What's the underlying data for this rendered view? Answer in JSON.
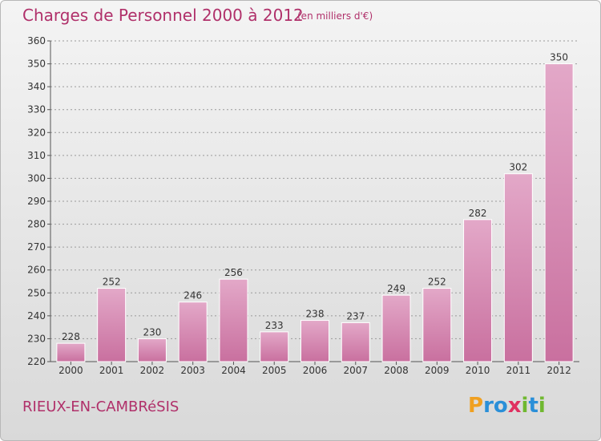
{
  "header": {
    "title": "Charges de Personnel 2000 à 2012",
    "subtitle": "(en milliers d'€)"
  },
  "footer": {
    "commune": "RIEUX-EN-CAMBRéSIS",
    "logo": {
      "letters": [
        "P",
        "r",
        "o",
        "x",
        "i",
        "t",
        "i"
      ],
      "colors": [
        "#f0a020",
        "#2a8fd8",
        "#2a8fd8",
        "#e03060",
        "#70b830",
        "#2a8fd8",
        "#70b830"
      ]
    }
  },
  "colors": {
    "bar": "#c9709f",
    "bar_light": "#e3a8c8",
    "text": "#b0306a",
    "axis": "#555555",
    "grid": "#9a9a9a"
  },
  "chart_data": {
    "type": "bar",
    "categories": [
      "2000",
      "2001",
      "2002",
      "2003",
      "2004",
      "2005",
      "2006",
      "2007",
      "2008",
      "2009",
      "2010",
      "2011",
      "2012"
    ],
    "values": [
      228,
      252,
      230,
      246,
      256,
      233,
      238,
      237,
      249,
      252,
      282,
      302,
      350
    ],
    "ylim": [
      220,
      360
    ],
    "yticks": [
      220,
      230,
      240,
      250,
      260,
      270,
      280,
      290,
      300,
      310,
      320,
      330,
      340,
      350,
      360
    ],
    "grid": true,
    "data_labels": true
  }
}
